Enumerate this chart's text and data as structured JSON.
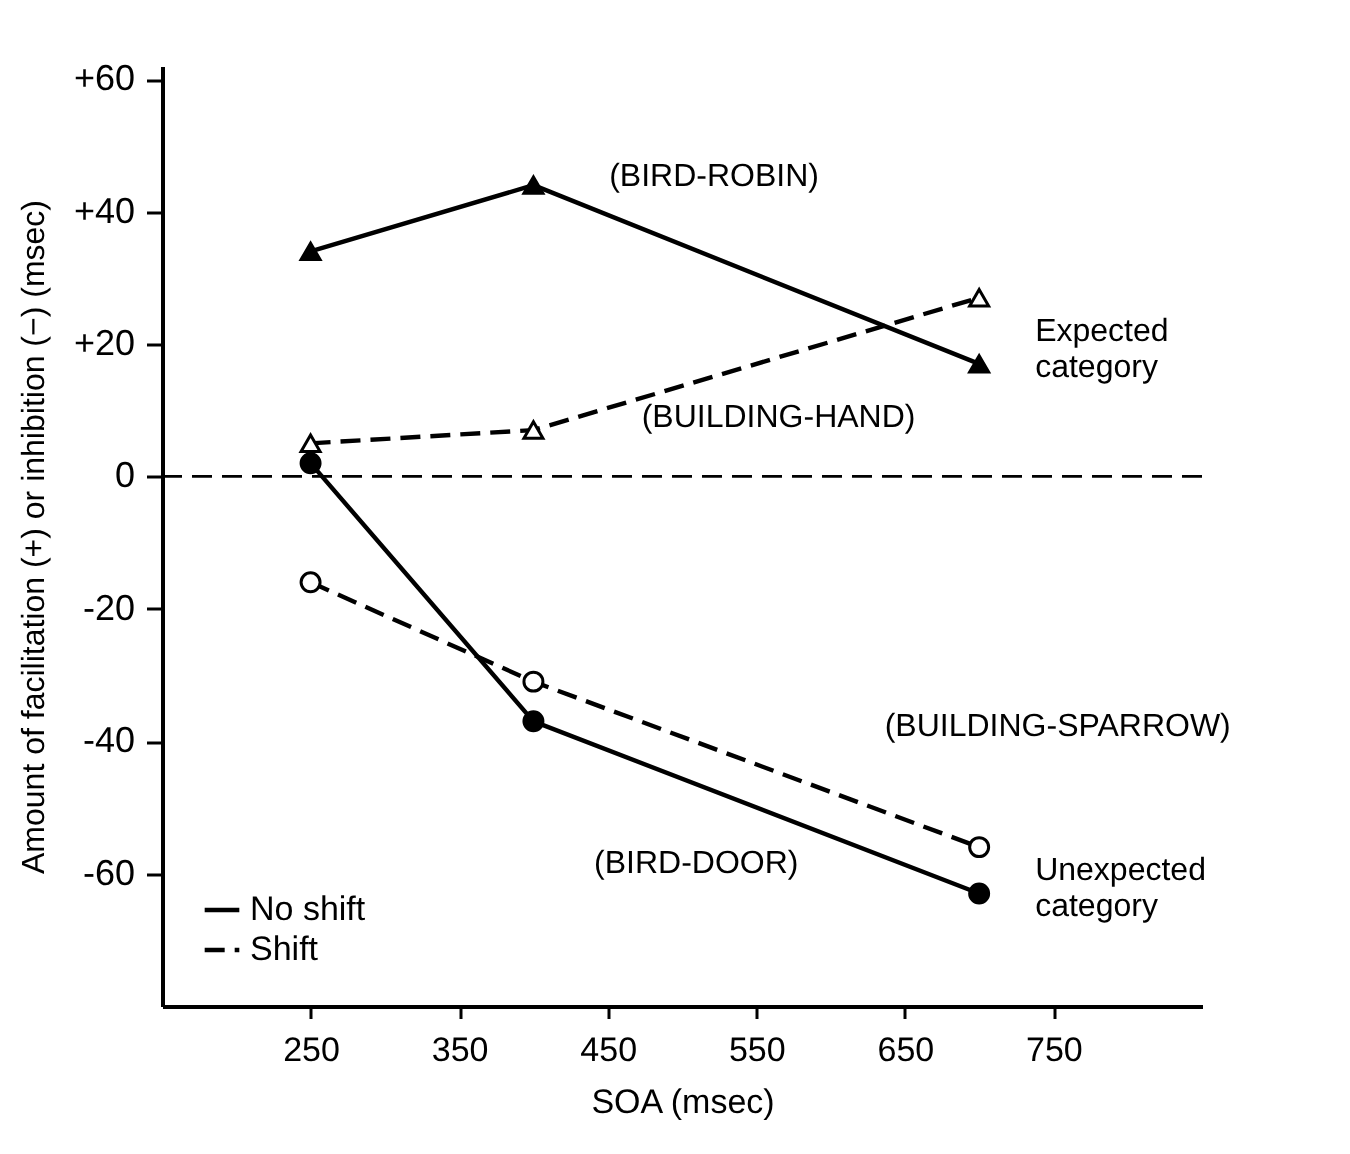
{
  "chart_data": {
    "type": "line",
    "xlabel": "SOA (msec)",
    "ylabel": "Amount of facilitation (+) or inhibition (−) (msec)",
    "x": [
      250,
      400,
      700
    ],
    "xlim": [
      150,
      850
    ],
    "xticks": [
      250,
      350,
      450,
      550,
      650,
      750
    ],
    "ylim": [
      -80,
      62
    ],
    "yticks": [
      {
        "value": 60,
        "label": "+60"
      },
      {
        "value": 40,
        "label": "+40"
      },
      {
        "value": 20,
        "label": "+20"
      },
      0,
      -20,
      -40,
      -60
    ],
    "grid": false,
    "series": [
      {
        "name": "(BIRD-ROBIN)",
        "color": "#000000",
        "values": [
          34,
          44,
          17
        ],
        "marker": "triangle",
        "line_style": "solid"
      },
      {
        "name": "(BUILDING-HAND)",
        "color": "#000000",
        "values": [
          5,
          7,
          27
        ],
        "marker": "triangle",
        "line_style": "dashed"
      },
      {
        "name": "(BIRD-DOOR)",
        "color": "#000000",
        "values": [
          2,
          -37,
          -63
        ],
        "marker": "circle",
        "line_style": "solid"
      },
      {
        "name": "(BUILDING-SPARROW)",
        "color": "#000000",
        "values": [
          -16,
          -31,
          -56
        ],
        "marker": "circle",
        "line_style": "dashed"
      }
    ],
    "ref_lines": [
      {
        "axis": "y",
        "value": 0,
        "line_style": "dashed"
      }
    ],
    "annotations": [
      "No shift",
      "Shift",
      "Expected category",
      "Unexpected category"
    ]
  }
}
